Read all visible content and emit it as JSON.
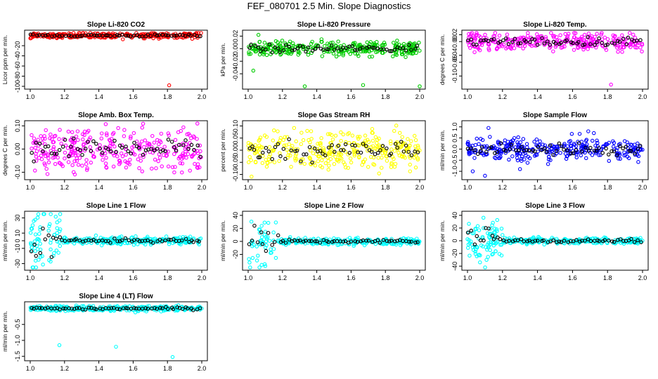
{
  "title": "FEF_080701  2.5 Min. Slope Diagnostics",
  "xtick_labels": [
    "1.0",
    "1.2",
    "1.4",
    "1.6",
    "1.8",
    "2.0"
  ],
  "colors": {
    "overlay": "#000000",
    "red": "#ff0000",
    "green": "#00cc00",
    "magenta": "#ff00ff",
    "yellow": "#ffff00",
    "blue": "#0000ff",
    "cyan": "#00ffff"
  },
  "chart_data": [
    {
      "type": "scatter",
      "title": "Slope Li-820 CO2",
      "ylabel": "Licor ppm per min.",
      "xlim": [
        1.0,
        2.0
      ],
      "ylim": [
        -100,
        5
      ],
      "yticks": [
        -100,
        -80,
        -60,
        -40,
        -20
      ],
      "ytick_labels": [
        "-100",
        "-80",
        "-60",
        "-40",
        "-20"
      ],
      "color": "red",
      "center": 0,
      "spread": 2.5,
      "outliers": [
        [
          1.81,
          -98
        ]
      ]
    },
    {
      "type": "scatter",
      "title": "Slope Li-820 Pressure",
      "ylabel": "kPa per min.",
      "xlim": [
        1.0,
        2.0
      ],
      "ylim": [
        -0.06,
        0.025
      ],
      "yticks": [
        -0.04,
        -0.02,
        0.0,
        0.02
      ],
      "ytick_labels": [
        "-0.04",
        "-0.02",
        "0.00",
        "0.02"
      ],
      "color": "green",
      "center": 0.0,
      "spread": 0.006,
      "outliers": [
        [
          1.33,
          -0.06
        ],
        [
          1.67,
          -0.058
        ],
        [
          2.0,
          -0.06
        ],
        [
          1.06,
          0.022
        ],
        [
          1.03,
          -0.035
        ]
      ]
    },
    {
      "type": "scatter",
      "title": "Slope Li-820 Temp.",
      "ylabel": "degrees C per min.",
      "xlim": [
        1.0,
        2.0
      ],
      "ylim": [
        -0.13,
        0.025
      ],
      "yticks": [
        -0.1,
        -0.06,
        -0.04,
        0.0,
        0.02
      ],
      "ytick_labels": [
        "-0.10",
        "-0.06",
        "-0.04",
        "0.00",
        "0.02"
      ],
      "color": "magenta",
      "center": 0.0,
      "spread": 0.012,
      "outliers": [
        [
          1.82,
          -0.125
        ]
      ]
    },
    {
      "type": "scatter",
      "title": "Slope Amb. Box Temp.",
      "ylabel": "degrees C per min.",
      "xlim": [
        1.0,
        2.0
      ],
      "ylim": [
        -0.12,
        0.11
      ],
      "yticks": [
        -0.1,
        0.0,
        0.1
      ],
      "ytick_labels": [
        "-0.10",
        "0.00",
        "0.10"
      ],
      "color": "magenta",
      "center": 0.0,
      "spread": 0.045,
      "outliers": []
    },
    {
      "type": "scatter",
      "title": "Slope Gas Stream RH",
      "ylabel": "percent per min.",
      "xlim": [
        1.0,
        2.0
      ],
      "ylim": [
        -0.11,
        0.11
      ],
      "yticks": [
        -0.1,
        -0.05,
        0.0,
        0.05,
        0.1
      ],
      "ytick_labels": [
        "-0.10",
        "-0.05",
        "0.00",
        "0.05",
        "0.10"
      ],
      "color": "yellow",
      "center": 0.0,
      "spread": 0.04,
      "outliers": []
    },
    {
      "type": "scatter",
      "title": "Slope Sample Flow",
      "ylabel": "ml/min per min.",
      "xlim": [
        1.0,
        2.0
      ],
      "ylim": [
        -1.25,
        1.15
      ],
      "yticks": [
        -1.0,
        -0.5,
        0.0,
        0.5,
        1.0
      ],
      "ytick_labels": [
        "-1.0",
        "-0.5",
        "0.0",
        "0.5",
        "1.0"
      ],
      "color": "blue",
      "center": 0.0,
      "spread": 0.25,
      "outliers": [
        [
          1.03,
          -1.0
        ],
        [
          1.1,
          -1.2
        ],
        [
          1.12,
          0.95
        ],
        [
          1.3,
          -0.9
        ],
        [
          1.69,
          0.8
        ]
      ]
    },
    {
      "type": "scatter",
      "title": "Slope Line 1 Flow",
      "ylabel": "ml/min per min.",
      "xlim": [
        1.0,
        2.0
      ],
      "ylim": [
        -35,
        35
      ],
      "yticks": [
        -30,
        -10,
        0,
        10,
        30
      ],
      "ytick_labels": [
        "-30",
        "-10",
        "0",
        "10",
        "30"
      ],
      "color": "cyan",
      "center": 0,
      "spread": 2.5,
      "burst": [
        1.0,
        1.18,
        18
      ]
    },
    {
      "type": "scatter",
      "title": "Slope Line 2 Flow",
      "ylabel": "ml/min per min.",
      "xlim": [
        1.0,
        2.0
      ],
      "ylim": [
        -40,
        42
      ],
      "yticks": [
        -20,
        0,
        20,
        40
      ],
      "ytick_labels": [
        "-20",
        "0",
        "20",
        "40"
      ],
      "color": "cyan",
      "center": 0,
      "spread": 2.5,
      "burst": [
        1.0,
        1.18,
        20
      ]
    },
    {
      "type": "scatter",
      "title": "Slope Line 3 Flow",
      "ylabel": "ml/min per min.",
      "xlim": [
        1.0,
        2.0
      ],
      "ylim": [
        -42,
        42
      ],
      "yticks": [
        -40,
        -20,
        0,
        20,
        40
      ],
      "ytick_labels": [
        "-40",
        "-20",
        "0",
        "20",
        "40"
      ],
      "color": "cyan",
      "center": 0,
      "spread": 2.5,
      "burst": [
        1.0,
        1.2,
        20
      ]
    },
    {
      "type": "scatter",
      "title": "Slope Line 4 (LT) Flow",
      "ylabel": "ml/min per min.",
      "xlim": [
        1.0,
        2.0
      ],
      "ylim": [
        -1.55,
        0.12
      ],
      "yticks": [
        -1.5,
        -1.0,
        -0.5
      ],
      "ytick_labels": [
        "-1.5",
        "-1.0",
        "-0.5"
      ],
      "color": "cyan",
      "center": 0.0,
      "spread": 0.04,
      "outliers": [
        [
          1.17,
          -1.15
        ],
        [
          1.5,
          -1.2
        ],
        [
          1.83,
          -1.52
        ]
      ]
    }
  ]
}
